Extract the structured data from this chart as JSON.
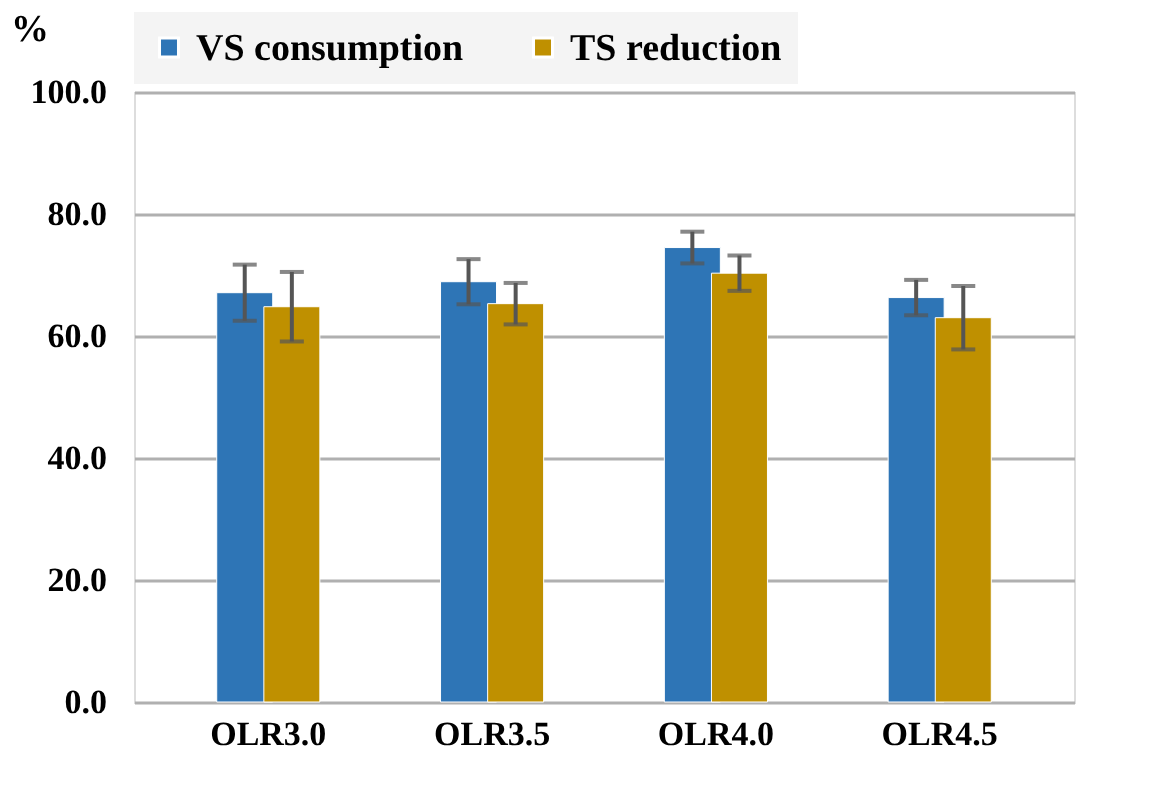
{
  "chart_data": {
    "type": "bar",
    "ylabel": "%",
    "categories": [
      "OLR3.0",
      "OLR3.5",
      "OLR4.0",
      "OLR4.5"
    ],
    "series": [
      {
        "name": "VS consumption",
        "color": "#2e75b6",
        "values": [
          67.1,
          68.9,
          74.5,
          66.3
        ],
        "errors": [
          4.6,
          3.7,
          2.6,
          2.9
        ]
      },
      {
        "name": "TS reduction",
        "color": "#bf9000",
        "values": [
          64.8,
          65.3,
          70.3,
          63.0
        ],
        "errors": [
          5.7,
          3.4,
          2.9,
          5.2
        ]
      }
    ],
    "ylim": [
      0,
      100
    ],
    "yticks": [
      {
        "value": 0,
        "label": "0.0"
      },
      {
        "value": 20,
        "label": "20.0"
      },
      {
        "value": 40,
        "label": "40.0"
      },
      {
        "value": 60,
        "label": "60.0"
      },
      {
        "value": 80,
        "label": "80.0"
      },
      {
        "value": 100,
        "label": "100.0"
      }
    ],
    "grid": "y",
    "legend": "top"
  }
}
